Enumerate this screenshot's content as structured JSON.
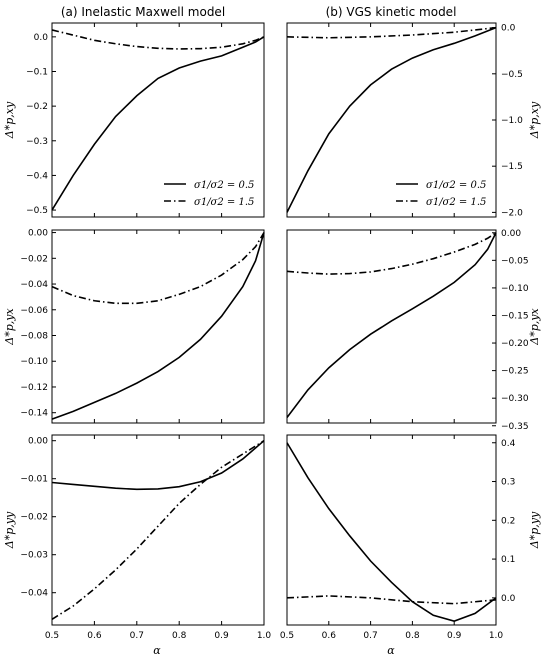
{
  "column_titles": [
    "(a) Inelastic Maxwell model",
    "(b) VGS kinetic model"
  ],
  "xlabel": "α",
  "chart_data": [
    {
      "type": "line",
      "xlim": [
        0.5,
        1.0
      ],
      "ylim": [
        -0.52,
        0.04
      ],
      "ylabel": "Δ*p,xy",
      "yticks": [
        0.0,
        -0.1,
        -0.2,
        -0.3,
        -0.4,
        -0.5
      ],
      "ytick_labels": [
        "0.0",
        "−0.1",
        "−0.2",
        "−0.3",
        "−0.4",
        "−0.5"
      ],
      "legend": "bottom-right",
      "series": [
        {
          "name": "σ1/σ2 = 0.5",
          "style": "solid",
          "x": [
            0.5,
            0.55,
            0.6,
            0.65,
            0.7,
            0.75,
            0.8,
            0.85,
            0.9,
            0.95,
            0.98,
            1.0
          ],
          "y": [
            -0.5,
            -0.4,
            -0.31,
            -0.23,
            -0.17,
            -0.12,
            -0.09,
            -0.07,
            -0.055,
            -0.03,
            -0.015,
            0.0
          ]
        },
        {
          "name": "σ1/σ2 = 1.5",
          "style": "dashdot",
          "x": [
            0.5,
            0.55,
            0.6,
            0.65,
            0.7,
            0.75,
            0.8,
            0.85,
            0.9,
            0.95,
            0.98,
            1.0
          ],
          "y": [
            0.02,
            0.005,
            -0.01,
            -0.02,
            -0.028,
            -0.033,
            -0.035,
            -0.034,
            -0.03,
            -0.02,
            -0.01,
            0.0
          ]
        }
      ]
    },
    {
      "type": "line",
      "xlim": [
        0.5,
        1.0
      ],
      "ylim": [
        -2.05,
        0.05
      ],
      "ylabel": "Δ*p,xy",
      "yticks": [
        0.0,
        -0.5,
        -1.0,
        -1.5,
        -2.0
      ],
      "ytick_labels": [
        "0.0",
        "−0.5",
        "−1.0",
        "−1.5",
        "−2.0"
      ],
      "legend": "bottom-right",
      "series": [
        {
          "name": "σ1/σ2 = 0.5",
          "style": "solid",
          "x": [
            0.5,
            0.55,
            0.6,
            0.65,
            0.7,
            0.75,
            0.8,
            0.85,
            0.9,
            0.95,
            1.0
          ],
          "y": [
            -2.0,
            -1.55,
            -1.15,
            -0.85,
            -0.62,
            -0.45,
            -0.33,
            -0.24,
            -0.17,
            -0.09,
            0.0
          ]
        },
        {
          "name": "σ1/σ2 = 1.5",
          "style": "dashdot",
          "x": [
            0.5,
            0.6,
            0.7,
            0.8,
            0.9,
            1.0
          ],
          "y": [
            -0.1,
            -0.11,
            -0.1,
            -0.08,
            -0.05,
            0.0
          ]
        }
      ]
    },
    {
      "type": "line",
      "xlim": [
        0.5,
        1.0
      ],
      "ylim": [
        -0.148,
        0.002
      ],
      "ylabel": "Δ*p,yx",
      "yticks": [
        0.0,
        -0.02,
        -0.04,
        -0.06,
        -0.08,
        -0.1,
        -0.12,
        -0.14
      ],
      "ytick_labels": [
        "0.00",
        "−0.02",
        "−0.04",
        "−0.06",
        "−0.08",
        "−0.10",
        "−0.12",
        "−0.14"
      ],
      "series": [
        {
          "name": "σ1/σ2 = 0.5",
          "style": "solid",
          "x": [
            0.5,
            0.55,
            0.6,
            0.65,
            0.7,
            0.75,
            0.8,
            0.85,
            0.9,
            0.95,
            0.98,
            1.0
          ],
          "y": [
            -0.145,
            -0.139,
            -0.132,
            -0.125,
            -0.117,
            -0.108,
            -0.097,
            -0.083,
            -0.065,
            -0.042,
            -0.022,
            0.0
          ]
        },
        {
          "name": "σ1/σ2 = 1.5",
          "style": "dashdot",
          "x": [
            0.5,
            0.55,
            0.6,
            0.65,
            0.7,
            0.75,
            0.8,
            0.85,
            0.9,
            0.95,
            0.98,
            1.0
          ],
          "y": [
            -0.042,
            -0.049,
            -0.053,
            -0.055,
            -0.055,
            -0.053,
            -0.048,
            -0.042,
            -0.033,
            -0.021,
            -0.011,
            0.0
          ]
        }
      ]
    },
    {
      "type": "line",
      "xlim": [
        0.5,
        1.0
      ],
      "ylim": [
        -0.345,
        0.005
      ],
      "ylabel": "Δ*p,yx",
      "yticks": [
        0.0,
        -0.05,
        -0.1,
        -0.15,
        -0.2,
        -0.25,
        -0.3,
        -0.35
      ],
      "ytick_labels": [
        "0.00",
        "−0.05",
        "−0.10",
        "−0.15",
        "−0.20",
        "−0.25",
        "−0.30",
        "−0.35"
      ],
      "series": [
        {
          "name": "σ1/σ2 = 0.5",
          "style": "solid",
          "x": [
            0.5,
            0.55,
            0.6,
            0.65,
            0.7,
            0.75,
            0.8,
            0.85,
            0.9,
            0.95,
            0.98,
            1.0
          ],
          "y": [
            -0.335,
            -0.285,
            -0.245,
            -0.212,
            -0.184,
            -0.16,
            -0.138,
            -0.115,
            -0.09,
            -0.058,
            -0.03,
            0.0
          ]
        },
        {
          "name": "σ1/σ2 = 1.5",
          "style": "dashdot",
          "x": [
            0.5,
            0.55,
            0.6,
            0.65,
            0.7,
            0.75,
            0.8,
            0.85,
            0.9,
            0.95,
            0.98,
            1.0
          ],
          "y": [
            -0.07,
            -0.073,
            -0.075,
            -0.074,
            -0.071,
            -0.065,
            -0.057,
            -0.047,
            -0.035,
            -0.021,
            -0.01,
            0.0
          ]
        }
      ]
    },
    {
      "type": "line",
      "xlim": [
        0.5,
        1.0
      ],
      "ylim": [
        -0.0485,
        0.0015
      ],
      "ylabel": "Δ*p,yy",
      "xticks": [
        0.5,
        0.6,
        0.7,
        0.8,
        0.9,
        1.0
      ],
      "xtick_labels": [
        "0.5",
        "0.6",
        "0.7",
        "0.8",
        "0.9",
        "1.0"
      ],
      "yticks": [
        0.0,
        -0.01,
        -0.02,
        -0.03,
        -0.04
      ],
      "ytick_labels": [
        "0.00",
        "−0.01",
        "−0.02",
        "−0.03",
        "−0.04"
      ],
      "series": [
        {
          "name": "σ1/σ2 = 0.5",
          "style": "solid",
          "x": [
            0.5,
            0.55,
            0.6,
            0.65,
            0.7,
            0.75,
            0.8,
            0.85,
            0.9,
            0.95,
            1.0
          ],
          "y": [
            -0.011,
            -0.0115,
            -0.012,
            -0.0125,
            -0.0128,
            -0.0127,
            -0.0121,
            -0.0108,
            -0.0085,
            -0.0048,
            0.0
          ]
        },
        {
          "name": "σ1/σ2 = 1.5",
          "style": "dashdot",
          "x": [
            0.5,
            0.55,
            0.6,
            0.65,
            0.7,
            0.75,
            0.8,
            0.85,
            0.9,
            0.95,
            1.0
          ],
          "y": [
            -0.047,
            -0.0435,
            -0.039,
            -0.034,
            -0.0285,
            -0.0225,
            -0.0165,
            -0.0115,
            -0.007,
            -0.0035,
            0.0
          ]
        }
      ]
    },
    {
      "type": "line",
      "xlim": [
        0.5,
        1.0
      ],
      "ylim": [
        -0.07,
        0.42
      ],
      "ylabel": "Δ*p,yy",
      "xticks": [
        0.5,
        0.6,
        0.7,
        0.8,
        0.9,
        1.0
      ],
      "xtick_labels": [
        "0.5",
        "0.6",
        "0.7",
        "0.8",
        "0.9",
        "1.0"
      ],
      "yticks": [
        0.4,
        0.3,
        0.2,
        0.1,
        0.0
      ],
      "ytick_labels": [
        "0.4",
        "0.3",
        "0.2",
        "0.1",
        "0.0"
      ],
      "series": [
        {
          "name": "σ1/σ2 = 0.5",
          "style": "solid",
          "x": [
            0.5,
            0.55,
            0.6,
            0.65,
            0.7,
            0.75,
            0.8,
            0.85,
            0.9,
            0.95,
            1.0
          ],
          "y": [
            0.4,
            0.31,
            0.23,
            0.16,
            0.095,
            0.04,
            -0.01,
            -0.045,
            -0.06,
            -0.04,
            0.0
          ]
        },
        {
          "name": "σ1/σ2 = 1.5",
          "style": "dashdot",
          "x": [
            0.5,
            0.6,
            0.7,
            0.8,
            0.9,
            1.0
          ],
          "y": [
            0.0,
            0.005,
            0.0,
            -0.01,
            -0.015,
            -0.005
          ]
        }
      ]
    }
  ]
}
